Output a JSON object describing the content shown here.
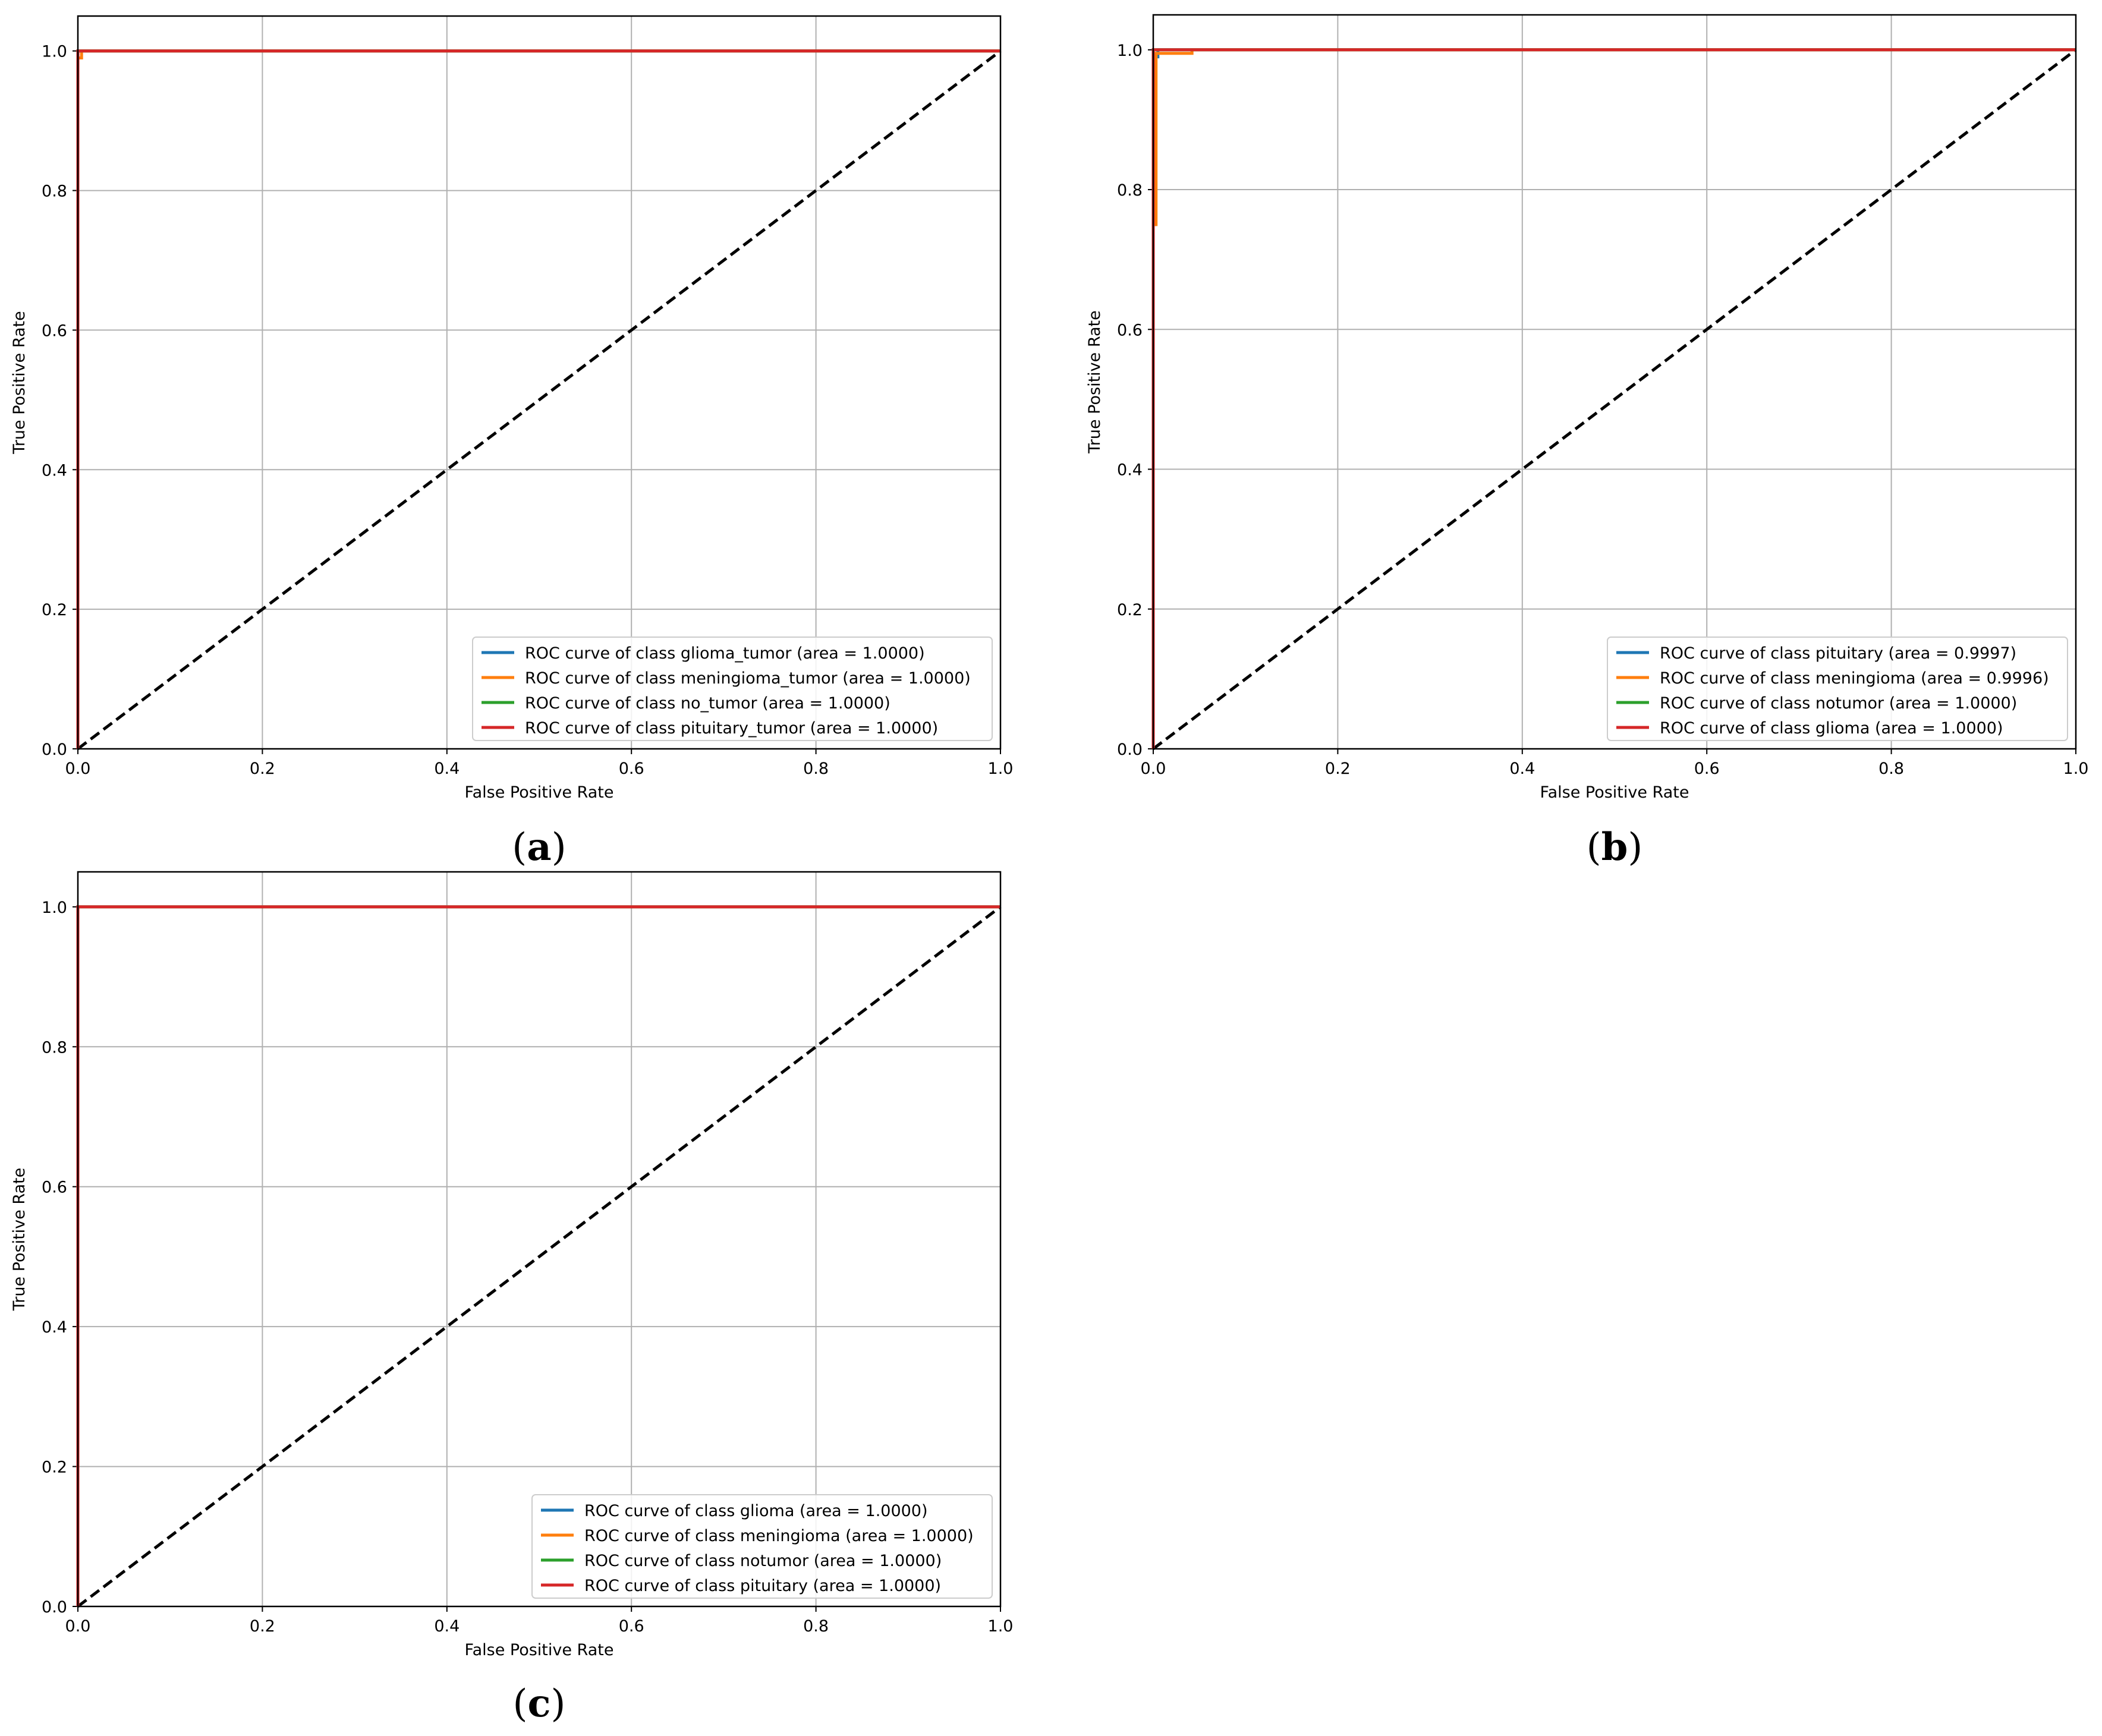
{
  "chart_data": [
    {
      "type": "line",
      "caption": {
        "open": "(",
        "letter": "a",
        "close": ")"
      },
      "xlabel": "False Positive Rate",
      "ylabel": "True Positive Rate",
      "xlim": [
        0.0,
        1.0
      ],
      "ylim": [
        0.0,
        1.05
      ],
      "xticks": [
        "0.0",
        "0.2",
        "0.4",
        "0.6",
        "0.8",
        "1.0"
      ],
      "yticks": [
        "0.0",
        "0.2",
        "0.4",
        "0.6",
        "0.8",
        "1.0"
      ],
      "grid": true,
      "legend_position": "lower right",
      "reference_line": {
        "x": [
          0,
          1
        ],
        "y": [
          0,
          1
        ],
        "color": "#000000",
        "style": "dashed"
      },
      "series": [
        {
          "name": "ROC curve of class glioma_tumor (area = 1.0000)",
          "color": "#1f77b4",
          "x": [
            0,
            0,
            1
          ],
          "y": [
            0,
            1,
            1
          ]
        },
        {
          "name": "ROC curve of class meningioma_tumor (area = 1.0000)",
          "color": "#ff7f0e",
          "x": [
            0,
            0,
            0.004,
            0.004,
            1
          ],
          "y": [
            0,
            0.99,
            0.99,
            1,
            1
          ]
        },
        {
          "name": "ROC curve of class no_tumor (area = 1.0000)",
          "color": "#2ca02c",
          "x": [
            0,
            0,
            1
          ],
          "y": [
            0,
            1,
            1
          ]
        },
        {
          "name": "ROC curve of class pituitary_tumor (area = 1.0000)",
          "color": "#d62728",
          "x": [
            0,
            0,
            1
          ],
          "y": [
            0,
            1,
            1
          ]
        }
      ]
    },
    {
      "type": "line",
      "caption": {
        "open": "(",
        "letter": "b",
        "close": ")"
      },
      "xlabel": "False Positive Rate",
      "ylabel": "True Positive Rate",
      "xlim": [
        0.0,
        1.0
      ],
      "ylim": [
        0.0,
        1.05
      ],
      "xticks": [
        "0.0",
        "0.2",
        "0.4",
        "0.6",
        "0.8",
        "1.0"
      ],
      "yticks": [
        "0.0",
        "0.2",
        "0.4",
        "0.6",
        "0.8",
        "1.0"
      ],
      "grid": true,
      "legend_position": "lower right",
      "reference_line": {
        "x": [
          0,
          1
        ],
        "y": [
          0,
          1
        ],
        "color": "#000000",
        "style": "dashed"
      },
      "series": [
        {
          "name": "ROC curve of class pituitary (area = 0.9997)",
          "color": "#1f77b4",
          "x": [
            0,
            0,
            0.002,
            0.002,
            0.005,
            0.005,
            1
          ],
          "y": [
            0,
            0.75,
            0.75,
            0.99,
            0.99,
            1,
            1
          ]
        },
        {
          "name": "ROC curve of class meningioma (area = 0.9996)",
          "color": "#ff7f0e",
          "x": [
            0,
            0,
            0.003,
            0.003,
            0.042,
            0.042,
            1
          ],
          "y": [
            0,
            0.75,
            0.75,
            0.995,
            0.995,
            1,
            1
          ]
        },
        {
          "name": "ROC curve of class notumor (area = 1.0000)",
          "color": "#2ca02c",
          "x": [
            0,
            0,
            1
          ],
          "y": [
            0,
            1,
            1
          ]
        },
        {
          "name": "ROC curve of class glioma (area = 1.0000)",
          "color": "#d62728",
          "x": [
            0,
            0,
            1
          ],
          "y": [
            0,
            1,
            1
          ]
        }
      ]
    },
    {
      "type": "line",
      "caption": {
        "open": "(",
        "letter": "c",
        "close": ")"
      },
      "xlabel": "False Positive Rate",
      "ylabel": "True Positive Rate",
      "xlim": [
        0.0,
        1.0
      ],
      "ylim": [
        0.0,
        1.05
      ],
      "xticks": [
        "0.0",
        "0.2",
        "0.4",
        "0.6",
        "0.8",
        "1.0"
      ],
      "yticks": [
        "0.0",
        "0.2",
        "0.4",
        "0.6",
        "0.8",
        "1.0"
      ],
      "grid": true,
      "legend_position": "lower right",
      "reference_line": {
        "x": [
          0,
          1
        ],
        "y": [
          0,
          1
        ],
        "color": "#000000",
        "style": "dashed"
      },
      "series": [
        {
          "name": "ROC curve of class glioma (area = 1.0000)",
          "color": "#1f77b4",
          "x": [
            0,
            0,
            1
          ],
          "y": [
            0,
            1,
            1
          ]
        },
        {
          "name": "ROC curve of class meningioma (area = 1.0000)",
          "color": "#ff7f0e",
          "x": [
            0,
            0,
            1
          ],
          "y": [
            0,
            1,
            1
          ]
        },
        {
          "name": "ROC curve of class notumor (area = 1.0000)",
          "color": "#2ca02c",
          "x": [
            0,
            0,
            1
          ],
          "y": [
            0,
            1,
            1
          ]
        },
        {
          "name": "ROC curve of class pituitary (area = 1.0000)",
          "color": "#d62728",
          "x": [
            0,
            0,
            1
          ],
          "y": [
            0,
            1,
            1
          ]
        }
      ]
    }
  ]
}
